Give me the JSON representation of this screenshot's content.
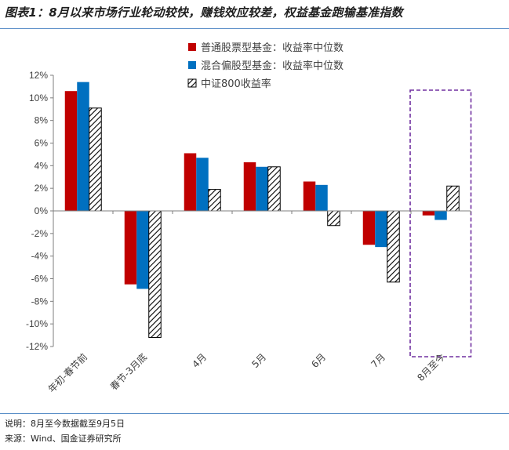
{
  "title": "图表1：8月以来市场行业轮动较快，赚钱效应较差，权益基金跑输基准指数",
  "notes": {
    "line1": "说明：8月至今数据截至9月5日",
    "line2": "来源：Wind、国金证券研究所"
  },
  "chart_data": {
    "type": "bar",
    "categories": [
      "年初-春节前",
      "春节-3月底",
      "4月",
      "5月",
      "6月",
      "7月",
      "8月至今"
    ],
    "series": [
      {
        "name": "普通股票型基金：收益率中位数",
        "color": "#c00000",
        "pattern": "solid",
        "values": [
          10.6,
          -6.5,
          5.1,
          4.3,
          2.6,
          -3.0,
          -0.4
        ]
      },
      {
        "name": "混合偏股型基金：收益率中位数",
        "color": "#0070c0",
        "pattern": "solid",
        "values": [
          11.4,
          -6.9,
          4.7,
          3.9,
          2.3,
          -3.2,
          -0.8
        ]
      },
      {
        "name": "中证800收益率",
        "color": "#000000",
        "pattern": "hatched",
        "values": [
          9.1,
          -11.2,
          1.9,
          3.9,
          -1.3,
          -6.3,
          2.2
        ]
      }
    ],
    "ylim": [
      -12,
      12
    ],
    "yticks": [
      -12,
      -10,
      -8,
      -6,
      -4,
      -2,
      0,
      2,
      4,
      6,
      8,
      10,
      12
    ],
    "ytick_labels": [
      "-12%",
      "-10%",
      "-8%",
      "-6%",
      "-4%",
      "-2%",
      "0%",
      "2%",
      "4%",
      "6%",
      "8%",
      "10%",
      "12%"
    ],
    "grid": false,
    "legend_position": "top-center",
    "highlight": {
      "category": "8月至今",
      "style": "dashed-box",
      "color": "#7030a0"
    }
  }
}
